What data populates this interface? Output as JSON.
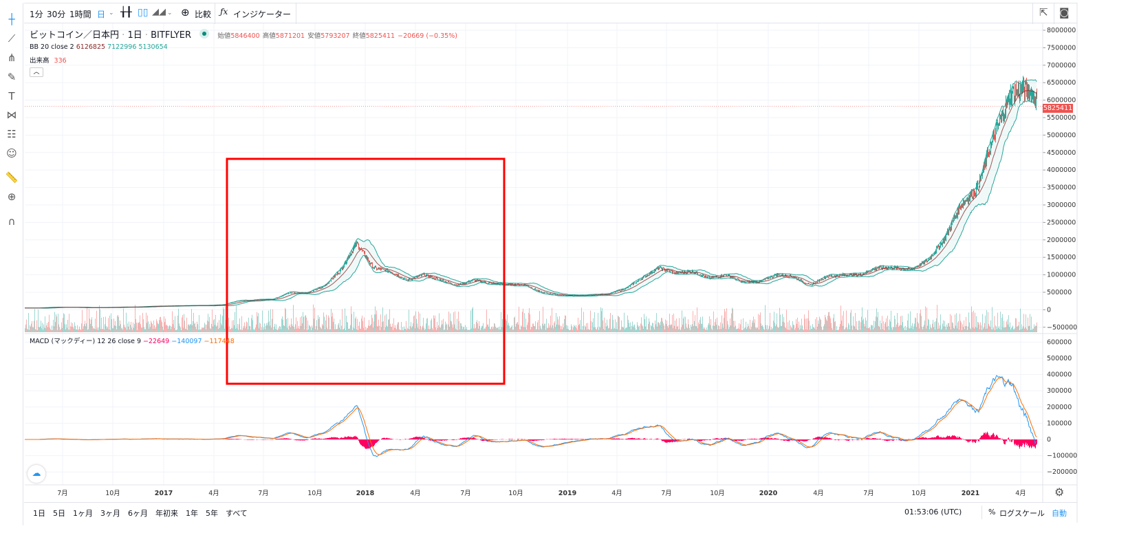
{
  "toolbar": {
    "intervals": [
      "1分",
      "30分",
      "1時間",
      "日"
    ],
    "compare": "比較",
    "indicators": "インジケーター"
  },
  "left_tools": [
    "crosshair-icon",
    "trend-line-icon",
    "pitchfork-icon",
    "brush-icon",
    "text-icon",
    "pattern-icon",
    "forecast-icon",
    "emoji-icon",
    "ruler-icon",
    "zoom-in-icon",
    "magnet-icon"
  ],
  "legend": {
    "symbol": "ビットコイン／日本円",
    "interval": "1日",
    "exchange": "BITFLYER",
    "open_label": "始値",
    "open": "5846400",
    "high_label": "高値",
    "high": "5871201",
    "low_label": "安値",
    "low": "5793207",
    "close_label": "終値",
    "close": "5825411",
    "change": "−20669 (−0.35%)",
    "bb_label": "BB 20 close 2",
    "bb_basis": "6126825",
    "bb_upper": "7122996",
    "bb_lower": "5130654",
    "vol_label": "出来高",
    "vol_value": "336",
    "macd_label": "MACD (マックディー) 12 26 close 9",
    "macd_hist": "−22649",
    "macd_line": "−140097",
    "macd_signal": "−117448"
  },
  "last_price": "5825411",
  "colors": {
    "up": "#26a69a",
    "down": "#ef5350",
    "bb": "#26a69a",
    "basis": "#8b2b2b",
    "macd": "#2196f3",
    "signal": "#ff6d00",
    "hist": "#ff0062",
    "annotation": "#ff0000"
  },
  "chart_data": [
    {
      "type": "candlestick",
      "ylim": [
        -500000,
        8000000
      ],
      "yticks": [
        "8000000",
        "7500000",
        "7000000",
        "6500000",
        "6000000",
        "5500000",
        "5000000",
        "4500000",
        "4000000",
        "3500000",
        "3000000",
        "2500000",
        "2000000",
        "1500000",
        "1000000",
        "500000",
        "0",
        "−500000"
      ],
      "months": [
        "2016-05",
        "2016-06",
        "2016-07",
        "2016-08",
        "2016-09",
        "2016-10",
        "2016-11",
        "2016-12",
        "2017-01",
        "2017-02",
        "2017-03",
        "2017-04",
        "2017-05",
        "2017-06",
        "2017-07",
        "2017-08",
        "2017-09",
        "2017-10",
        "2017-11",
        "2017-12",
        "2018-01",
        "2018-02",
        "2018-03",
        "2018-04",
        "2018-05",
        "2018-06",
        "2018-07",
        "2018-08",
        "2018-09",
        "2018-10",
        "2018-11",
        "2018-12",
        "2019-01",
        "2019-02",
        "2019-03",
        "2019-04",
        "2019-05",
        "2019-06",
        "2019-07",
        "2019-08",
        "2019-09",
        "2019-10",
        "2019-11",
        "2019-12",
        "2020-01",
        "2020-02",
        "2020-03",
        "2020-04",
        "2020-05",
        "2020-06",
        "2020-07",
        "2020-08",
        "2020-09",
        "2020-10",
        "2020-11",
        "2020-12",
        "2021-01",
        "2021-02",
        "2021-03",
        "2021-04",
        "2021-05"
      ],
      "close": [
        50000,
        70000,
        70000,
        60000,
        65000,
        75000,
        80000,
        100000,
        110000,
        120000,
        120000,
        140000,
        250000,
        280000,
        300000,
        480000,
        480000,
        650000,
        1100000,
        1900000,
        1200000,
        1100000,
        850000,
        1000000,
        850000,
        700000,
        850000,
        750000,
        720000,
        720000,
        500000,
        420000,
        400000,
        420000,
        450000,
        600000,
        900000,
        1200000,
        1050000,
        1100000,
        900000,
        1000000,
        800000,
        800000,
        1000000,
        950000,
        700000,
        950000,
        1000000,
        1000000,
        1200000,
        1200000,
        1150000,
        1400000,
        2000000,
        3000000,
        3500000,
        5000000,
        6200000,
        6300000,
        5825411
      ],
      "indicators": [
        "BB 20 close 2",
        "出来高"
      ]
    },
    {
      "type": "line",
      "title": "MACD (マックディー) 12 26 close 9",
      "ylim": [
        -250000,
        620000
      ],
      "yticks": [
        "600000",
        "500000",
        "400000",
        "300000",
        "200000",
        "100000",
        "0",
        "−100000",
        "−200000"
      ]
    }
  ],
  "xaxis": [
    "7月",
    "10月",
    "2017",
    "4月",
    "7月",
    "10月",
    "2018",
    "4月",
    "7月",
    "10月",
    "2019",
    "4月",
    "7月",
    "10月",
    "2020",
    "4月",
    "7月",
    "10月",
    "2021",
    "4月"
  ],
  "bottom": {
    "ranges": [
      "1日",
      "5日",
      "1ヶ月",
      "3ヶ月",
      "6ヶ月",
      "年初来",
      "1年",
      "5年",
      "すべて"
    ],
    "time": "01:53:06 (UTC)",
    "percent": "%",
    "log": "ログスケール",
    "auto": "自動"
  }
}
